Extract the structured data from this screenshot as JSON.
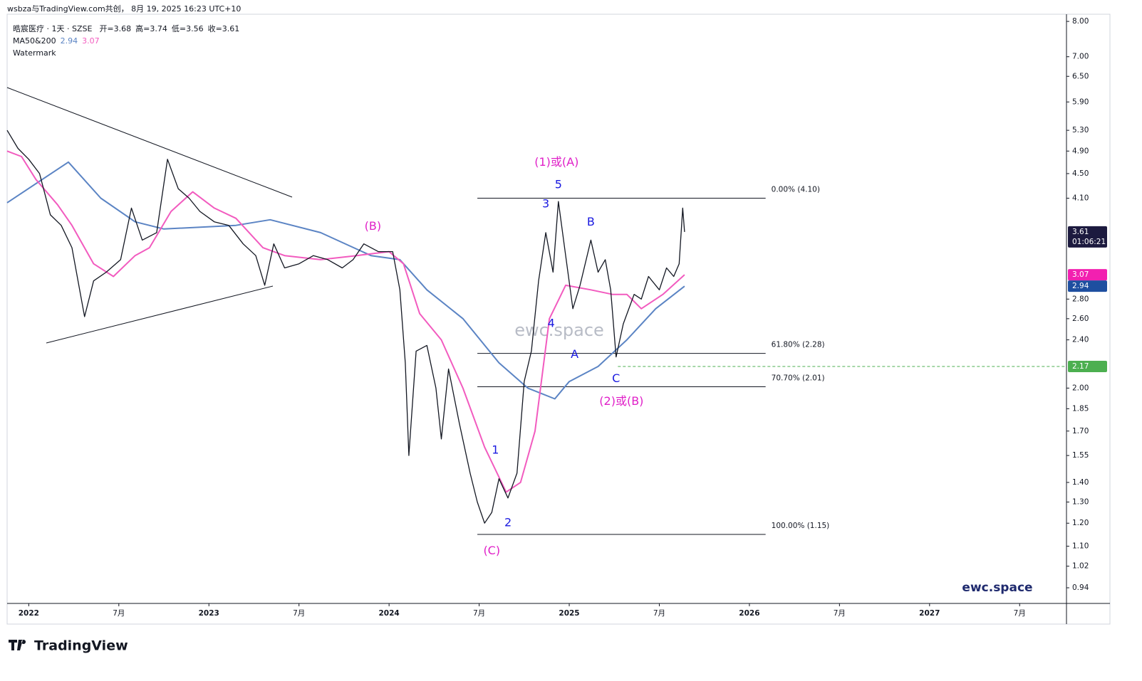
{
  "header": {
    "attribution": "wsbza与TradingView.com共创， 8月 19, 2025 16:23 UTC+10",
    "symbol": "晧宸医疗 · 1天 · SZSE",
    "ohlc": [
      "开=3.68",
      "高=3.74",
      "低=3.56",
      "收=3.61"
    ],
    "indicator": "MA50&200",
    "indicator_values": [
      2.94,
      3.07
    ],
    "watermark_label": "Watermark"
  },
  "watermark": "ewc.space",
  "brand": "ewc.space",
  "logo": "TradingView",
  "chart_data": {
    "type": "line",
    "log_scale": true,
    "grid": false,
    "xlim": [
      2021.88,
      2027.76
    ],
    "ylim": [
      0.886,
      8.22
    ],
    "xticks": [
      {
        "value": 2022,
        "label": "2022"
      },
      {
        "value": 2022.5,
        "label": "7月"
      },
      {
        "value": 2023,
        "label": "2023"
      },
      {
        "value": 2023.5,
        "label": "7月"
      },
      {
        "value": 2024,
        "label": "2024"
      },
      {
        "value": 2024.5,
        "label": "7月"
      },
      {
        "value": 2025,
        "label": "2025"
      },
      {
        "value": 2025.5,
        "label": "7月"
      },
      {
        "value": 2026,
        "label": "2026"
      },
      {
        "value": 2026.5,
        "label": "7月"
      },
      {
        "value": 2027,
        "label": "2027"
      },
      {
        "value": 2027.5,
        "label": "7月"
      }
    ],
    "yticks": [
      {
        "value": 8,
        "label": "8.00"
      },
      {
        "value": 7,
        "label": "7.00"
      },
      {
        "value": 6.5,
        "label": "6.50"
      },
      {
        "value": 5.9,
        "label": "5.90"
      },
      {
        "value": 5.3,
        "label": "5.30"
      },
      {
        "value": 4.9,
        "label": "4.90"
      },
      {
        "value": 4.5,
        "label": "4.50"
      },
      {
        "value": 4.1,
        "label": "4.10"
      },
      {
        "value": 2.8,
        "label": "2.80"
      },
      {
        "value": 2.6,
        "label": "2.60"
      },
      {
        "value": 2.4,
        "label": "2.40"
      },
      {
        "value": 2,
        "label": "2.00"
      },
      {
        "value": 1.85,
        "label": "1.85"
      },
      {
        "value": 1.7,
        "label": "1.70"
      },
      {
        "value": 1.55,
        "label": "1.55"
      },
      {
        "value": 1.4,
        "label": "1.40"
      },
      {
        "value": 1.3,
        "label": "1.30"
      },
      {
        "value": 1.2,
        "label": "1.20"
      },
      {
        "value": 1.1,
        "label": "1.10"
      },
      {
        "value": 1.02,
        "label": "1.02"
      },
      {
        "value": 0.94,
        "label": "0.94"
      }
    ],
    "series": [
      {
        "color": "#131722",
        "width": 1.3,
        "x": [
          2021.88,
          2021.94,
          2022.0,
          2022.06,
          2022.12,
          2022.18,
          2022.24,
          2022.31,
          2022.36,
          2022.43,
          2022.51,
          2022.57,
          2022.63,
          2022.71,
          2022.77,
          2022.83,
          2022.89,
          2022.95,
          2023.03,
          2023.11,
          2023.19,
          2023.26,
          2023.31,
          2023.36,
          2023.42,
          2023.5,
          2023.58,
          2023.66,
          2023.74,
          2023.8,
          2023.86,
          2023.94,
          2024.02,
          2024.06,
          2024.09,
          2024.11,
          2024.15,
          2024.21,
          2024.26,
          2024.29,
          2024.33,
          2024.39,
          2024.45,
          2024.49,
          2024.53,
          2024.57,
          2024.61,
          2024.66,
          2024.71,
          2024.75,
          2024.79,
          2024.83,
          2024.87,
          2024.91,
          2024.94,
          2024.98,
          2025.02,
          2025.06,
          2025.12,
          2025.16,
          2025.2,
          2025.23,
          2025.26,
          2025.3,
          2025.36,
          2025.4,
          2025.44,
          2025.5,
          2025.54,
          2025.58,
          2025.61,
          2025.63,
          2025.64
        ],
        "values": [
          5.3,
          4.95,
          4.75,
          4.5,
          3.85,
          3.7,
          3.4,
          2.62,
          3.0,
          3.1,
          3.25,
          3.95,
          3.5,
          3.6,
          4.75,
          4.25,
          4.1,
          3.9,
          3.75,
          3.7,
          3.45,
          3.3,
          2.95,
          3.45,
          3.15,
          3.2,
          3.3,
          3.25,
          3.15,
          3.25,
          3.45,
          3.35,
          3.35,
          2.9,
          2.2,
          1.55,
          2.3,
          2.35,
          2.0,
          1.65,
          2.15,
          1.75,
          1.45,
          1.3,
          1.2,
          1.25,
          1.42,
          1.32,
          1.45,
          2.05,
          2.3,
          3.0,
          3.6,
          3.1,
          4.05,
          3.3,
          2.7,
          2.95,
          3.5,
          3.1,
          3.25,
          2.9,
          2.25,
          2.55,
          2.85,
          2.8,
          3.05,
          2.9,
          3.15,
          3.05,
          3.2,
          3.95,
          3.61
        ]
      },
      {
        "color": "#5b84c4",
        "width": 2,
        "x": [
          2021.88,
          2022.22,
          2022.4,
          2022.59,
          2022.75,
          2023.15,
          2023.34,
          2023.62,
          2023.9,
          2024.06,
          2024.21,
          2024.41,
          2024.61,
          2024.77,
          2024.92,
          2025.0,
          2025.16,
          2025.32,
          2025.48,
          2025.64
        ],
        "values": [
          4.03,
          4.7,
          4.1,
          3.75,
          3.65,
          3.7,
          3.78,
          3.6,
          3.3,
          3.25,
          2.9,
          2.6,
          2.2,
          2.0,
          1.92,
          2.05,
          2.17,
          2.4,
          2.7,
          2.94
        ]
      },
      {
        "color": "#f25bbf",
        "width": 2,
        "x": [
          2021.88,
          2021.96,
          2022.04,
          2022.16,
          2022.24,
          2022.36,
          2022.47,
          2022.59,
          2022.67,
          2022.79,
          2022.91,
          2023.03,
          2023.15,
          2023.3,
          2023.42,
          2023.62,
          2023.82,
          2024.0,
          2024.08,
          2024.17,
          2024.29,
          2024.41,
          2024.53,
          2024.65,
          2024.73,
          2024.81,
          2024.89,
          2024.98,
          2025.12,
          2025.24,
          2025.32,
          2025.4,
          2025.52,
          2025.64
        ],
        "values": [
          4.9,
          4.8,
          4.4,
          4.0,
          3.7,
          3.2,
          3.05,
          3.3,
          3.4,
          3.9,
          4.2,
          3.95,
          3.8,
          3.4,
          3.3,
          3.25,
          3.3,
          3.35,
          3.2,
          2.65,
          2.4,
          2.0,
          1.6,
          1.35,
          1.4,
          1.7,
          2.6,
          2.95,
          2.9,
          2.85,
          2.85,
          2.7,
          2.85,
          3.07
        ]
      }
    ],
    "fib_x": [
      2024.49,
      2026.09
    ],
    "fib_levels": [
      {
        "label": "0.00% (4.10)",
        "value": 4.1
      },
      {
        "label": "61.80% (2.28)",
        "value": 2.28
      },
      {
        "label": "70.70% (2.01)",
        "value": 2.01
      },
      {
        "label": "100.00% (1.15)",
        "value": 1.15
      }
    ],
    "price_labels": [
      {
        "value": 3.61,
        "color": "#1c1a3f",
        "sub": "01:06:21"
      },
      {
        "value": 3.07,
        "color": "#f220b0"
      },
      {
        "value": 2.94,
        "color": "#1e4fa0"
      },
      {
        "value": 2.17,
        "color": "#4caf50",
        "x": 2025.27
      }
    ],
    "annotations": [
      {
        "text": "(1)或(A)",
        "x": 2024.93,
        "y": 4.69,
        "color": "#e020c8"
      },
      {
        "text": "5",
        "x": 2024.94,
        "y": 4.31,
        "color": "#1a1ae0"
      },
      {
        "text": "3",
        "x": 2024.87,
        "y": 4.01,
        "color": "#1a1ae0"
      },
      {
        "text": "B",
        "x": 2025.12,
        "y": 3.74,
        "color": "#1a1ae0"
      },
      {
        "text": "4",
        "x": 2024.9,
        "y": 2.55,
        "color": "#1a1ae0"
      },
      {
        "text": "A",
        "x": 2025.03,
        "y": 2.27,
        "color": "#1a1ae0"
      },
      {
        "text": "C",
        "x": 2025.26,
        "y": 2.07,
        "color": "#1a1ae0"
      },
      {
        "text": "(2)或(B)",
        "x": 2025.29,
        "y": 1.9,
        "color": "#e020c8"
      },
      {
        "text": "(B)",
        "x": 2023.91,
        "y": 3.68,
        "color": "#e020c8"
      },
      {
        "text": "1",
        "x": 2024.59,
        "y": 1.58,
        "color": "#1a1ae0"
      },
      {
        "text": "2",
        "x": 2024.66,
        "y": 1.2,
        "color": "#1a1ae0"
      },
      {
        "text": "(C)",
        "x": 2024.57,
        "y": 1.08,
        "color": "#e020c8"
      }
    ]
  }
}
